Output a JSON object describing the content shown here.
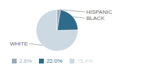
{
  "chart_data": {
    "type": "pie",
    "categories": [
      "WHITE",
      "BLACK",
      "HISPANIC"
    ],
    "values": [
      75.4,
      22.0,
      2.6
    ],
    "value_labels": [
      "75.4%",
      "22.0%",
      "2.6%"
    ],
    "colors": [
      "#ccd9e3",
      "#2e6b8a",
      "#9baab8"
    ],
    "legend": "bottom"
  }
}
